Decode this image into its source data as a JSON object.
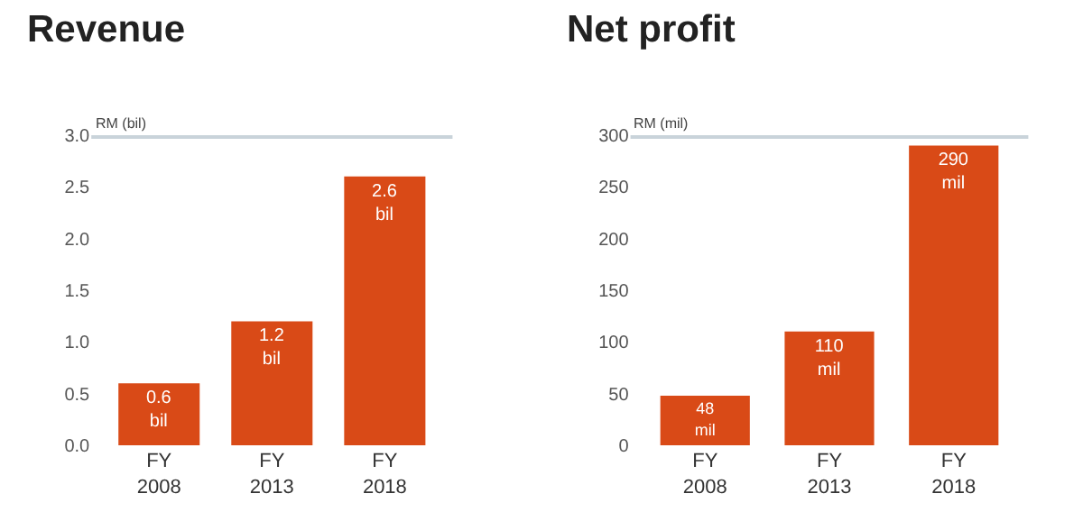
{
  "chart_data": [
    {
      "type": "bar",
      "title": "Revenue",
      "ylabel": "RM (bil)",
      "categories": [
        "FY\n2008",
        "FY\n2013",
        "FY\n2018"
      ],
      "values": [
        0.6,
        1.2,
        2.6
      ],
      "color": "#d94a17",
      "value_labels": [
        "0.6\nbil",
        "1.2\nbil",
        "2.6\nbil"
      ],
      "ylim": [
        0,
        3.0
      ],
      "yticks": [
        {
          "value": 0,
          "label": "0.0"
        },
        {
          "value": 0.5,
          "label": "0.5"
        },
        {
          "value": 1.0,
          "label": "1.0"
        },
        {
          "value": 1.5,
          "label": "1.5"
        },
        {
          "value": 2.0,
          "label": "2.0"
        },
        {
          "value": 2.5,
          "label": "2.5"
        },
        {
          "value": 3.0,
          "label": "3.0"
        }
      ],
      "ref_lines": [
        {
          "axis": "y",
          "value": 3.0,
          "color": "#c9d3da"
        }
      ]
    },
    {
      "type": "bar",
      "title": "Net profit",
      "ylabel": "RM (mil)",
      "categories": [
        "FY\n2008",
        "FY\n2013",
        "FY\n2018"
      ],
      "values": [
        48,
        110,
        290
      ],
      "color": "#d94a17",
      "value_labels": [
        "48\nmil",
        "110\nmil",
        "290\nmil"
      ],
      "ylim": [
        0,
        300
      ],
      "yticks": [
        0,
        50,
        100,
        150,
        200,
        250,
        300
      ],
      "ref_lines": [
        {
          "axis": "y",
          "value": 300,
          "color": "#c9d3da"
        }
      ]
    }
  ]
}
